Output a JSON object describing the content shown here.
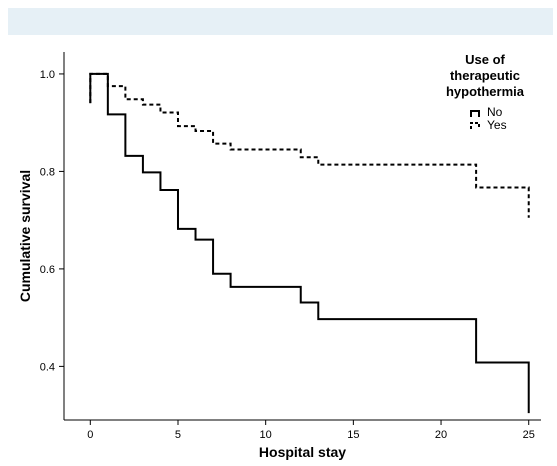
{
  "chart_data": {
    "type": "line",
    "step": true,
    "xlabel": "Hospital stay",
    "ylabel": "Cumulative survival",
    "xlim": [
      -1.5,
      25.7
    ],
    "ylim": [
      0.29,
      1.045
    ],
    "x_ticks": [
      0,
      5,
      10,
      15,
      20,
      25
    ],
    "y_ticks": [
      0.4,
      0.6,
      0.8,
      1.0
    ],
    "y_tick_labels": [
      "0.4",
      "0.6",
      "0.8",
      "1.0"
    ],
    "legend": {
      "title_lines": [
        "Use of",
        "therapeutic",
        "hypothermia"
      ],
      "placement": "top-right"
    },
    "series": [
      {
        "name": "No",
        "style": "solid",
        "color": "#000000",
        "x": [
          0,
          1,
          2,
          3,
          4,
          5,
          6,
          7,
          8,
          12,
          13,
          22,
          25
        ],
        "y": [
          1.0,
          0.917,
          0.832,
          0.798,
          0.762,
          0.682,
          0.66,
          0.59,
          0.563,
          0.531,
          0.497,
          0.408,
          0.304
        ]
      },
      {
        "name": "Yes",
        "style": "dashed",
        "color": "#000000",
        "x": [
          0,
          1,
          2,
          3,
          4,
          5,
          6,
          7,
          8,
          12,
          13,
          22,
          25
        ],
        "y": [
          1.0,
          0.975,
          0.948,
          0.937,
          0.921,
          0.893,
          0.883,
          0.857,
          0.845,
          0.829,
          0.814,
          0.767,
          0.705
        ]
      }
    ]
  }
}
